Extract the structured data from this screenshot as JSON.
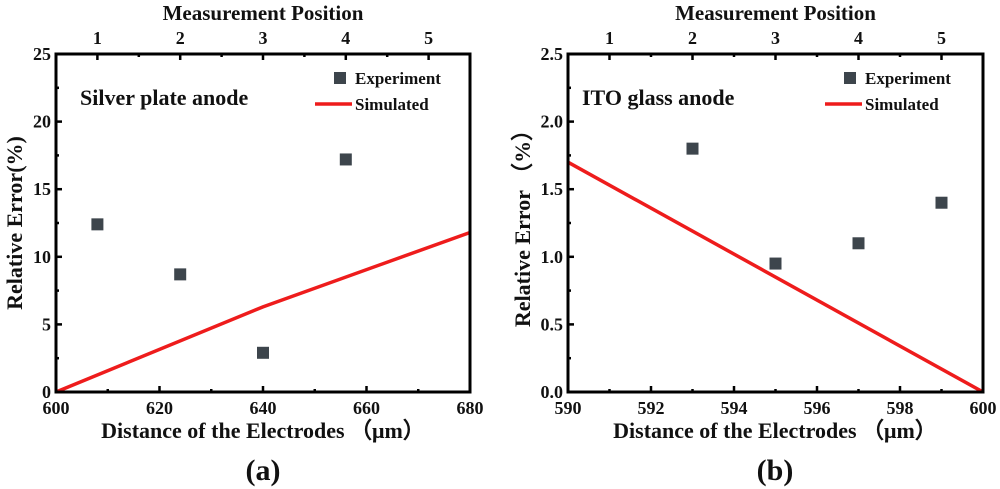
{
  "chart_data": [
    {
      "type": "scatter",
      "panel_label": "(a)",
      "title": "",
      "annotation": "Silver plate anode",
      "xlabel": "Distance of the Electrodes （μm）",
      "ylabel": "Relative Error(%)",
      "top_xlabel": "Measurement Position",
      "xlim": [
        600,
        680
      ],
      "ylim": [
        0,
        25
      ],
      "x_ticks": [
        "600",
        "620",
        "640",
        "660",
        "680"
      ],
      "x_tick_values": [
        600,
        620,
        640,
        660,
        680
      ],
      "y_ticks": [
        "0",
        "5",
        "10",
        "15",
        "20",
        "25"
      ],
      "y_tick_values": [
        0,
        5,
        10,
        15,
        20,
        25
      ],
      "top_ticks": [
        "1",
        "2",
        "3",
        "4",
        "5"
      ],
      "top_tick_values": [
        608,
        624,
        640,
        656,
        672
      ],
      "grid": false,
      "legend_placement": "top-right",
      "series": [
        {
          "name": "Experiment",
          "kind": "scatter",
          "color": "#3d454c",
          "x": [
            608,
            624,
            640,
            656
          ],
          "y": [
            12.4,
            8.7,
            2.9,
            17.2
          ]
        },
        {
          "name": "Simulated",
          "kind": "line",
          "color": "#ee1c1c",
          "x": [
            600,
            640,
            680
          ],
          "y": [
            0,
            6.3,
            11.8
          ]
        }
      ]
    },
    {
      "type": "scatter",
      "panel_label": "(b)",
      "title": "",
      "annotation": "ITO glass anode",
      "xlabel": "Distance of the Electrodes （μm）",
      "ylabel": "Relative Error （%）",
      "top_xlabel": "Measurement Position",
      "xlim": [
        590,
        600
      ],
      "ylim": [
        0,
        2.5
      ],
      "x_ticks": [
        "590",
        "592",
        "594",
        "596",
        "598",
        "600"
      ],
      "x_tick_values": [
        590,
        592,
        594,
        596,
        598,
        600
      ],
      "y_ticks": [
        "0.0",
        "0.5",
        "1.0",
        "1.5",
        "2.0",
        "2.5"
      ],
      "y_tick_values": [
        0,
        0.5,
        1.0,
        1.5,
        2.0,
        2.5
      ],
      "top_ticks": [
        "1",
        "2",
        "3",
        "4",
        "5"
      ],
      "top_tick_values": [
        591,
        593,
        595,
        597,
        599
      ],
      "grid": false,
      "legend_placement": "top-right",
      "series": [
        {
          "name": "Experiment",
          "kind": "scatter",
          "color": "#3d454c",
          "x": [
            593,
            595,
            597,
            599
          ],
          "y": [
            1.8,
            0.95,
            1.1,
            1.4
          ]
        },
        {
          "name": "Simulated",
          "kind": "line",
          "color": "#ee1c1c",
          "x": [
            590,
            600
          ],
          "y": [
            1.7,
            0
          ]
        }
      ]
    }
  ]
}
